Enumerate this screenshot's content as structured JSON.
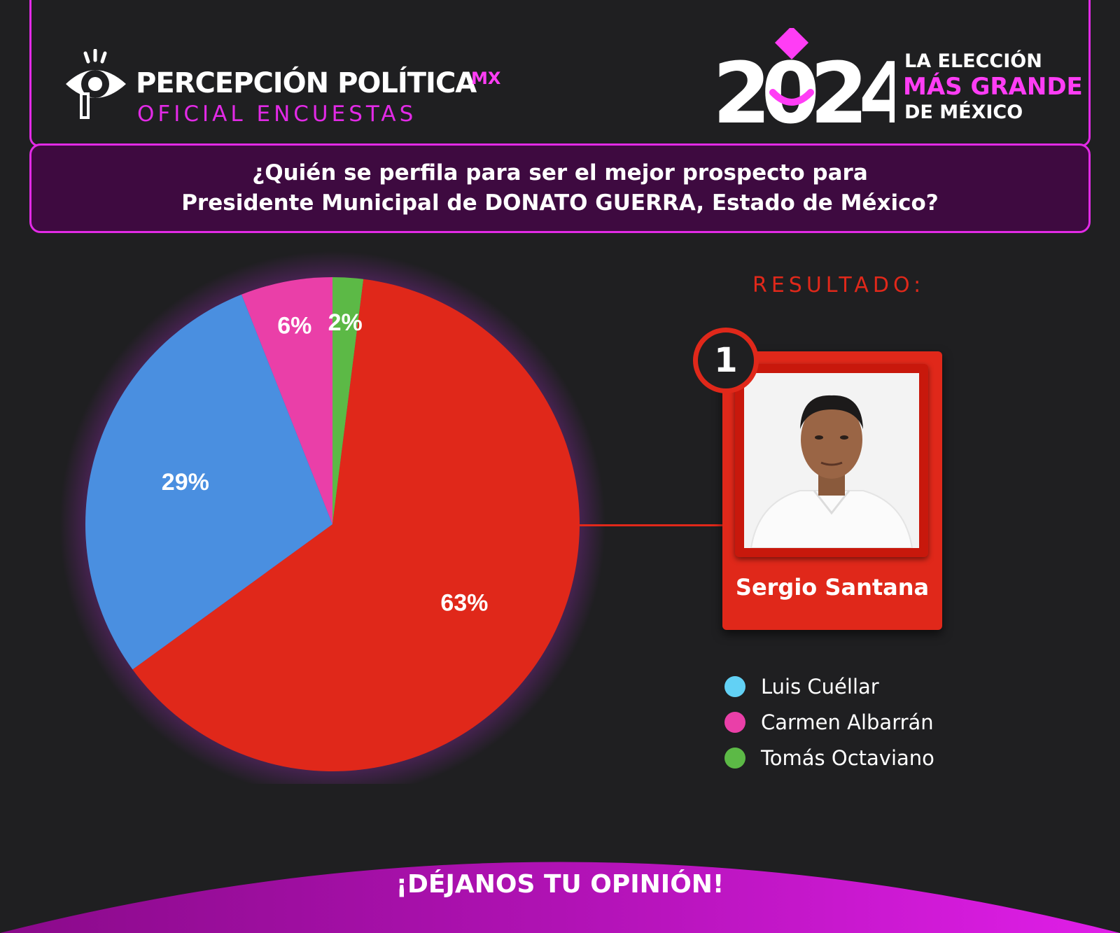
{
  "brand": {
    "name": "PERCEPCIÓN POLÍTICA",
    "suffix": "MX",
    "subtitle": "OFICIAL ENCUESTAS"
  },
  "election_logo": {
    "year": "2024",
    "tagline_1": "LA ELECCIÓN",
    "tagline_2": "MÁS GRANDE",
    "tagline_3": "DE MÉXICO"
  },
  "question": {
    "line_1": "¿Quién se perfila para ser el mejor prospecto para",
    "line_2": "Presidente Municipal de DONATO GUERRA, Estado de México?"
  },
  "result": {
    "heading": "RESULTADO:",
    "rank": "1",
    "winner_name": "Sergio Santana"
  },
  "chart_data": {
    "type": "pie",
    "slices": [
      {
        "label": "Tomás Octaviano",
        "value": 2,
        "display": "2%",
        "color": "#5cb946"
      },
      {
        "label": "Sergio Santana",
        "value": 63,
        "display": "63%",
        "color": "#e0281a"
      },
      {
        "label": "Luis Cuéllar",
        "value": 29,
        "display": "29%",
        "color": "#4a8fe0"
      },
      {
        "label": "Carmen Albarrán",
        "value": 6,
        "display": "6%",
        "color": "#ea3fa8"
      }
    ],
    "legend": [
      {
        "label": "Luis Cuéllar",
        "color": "#62d1f5"
      },
      {
        "label": "Carmen Albarrán",
        "color": "#ea3fa8"
      },
      {
        "label": "Tomás Octaviano",
        "color": "#5cb946"
      }
    ],
    "legend_position": "right"
  },
  "footer": {
    "cta": "¡DÉJANOS TU OPINIÓN!"
  },
  "colors": {
    "accent": "#e22ae6",
    "accent_bright": "#ff3df5",
    "result_red": "#e0281a",
    "background": "#1f1f21",
    "question_bg": "#3e0a40"
  }
}
